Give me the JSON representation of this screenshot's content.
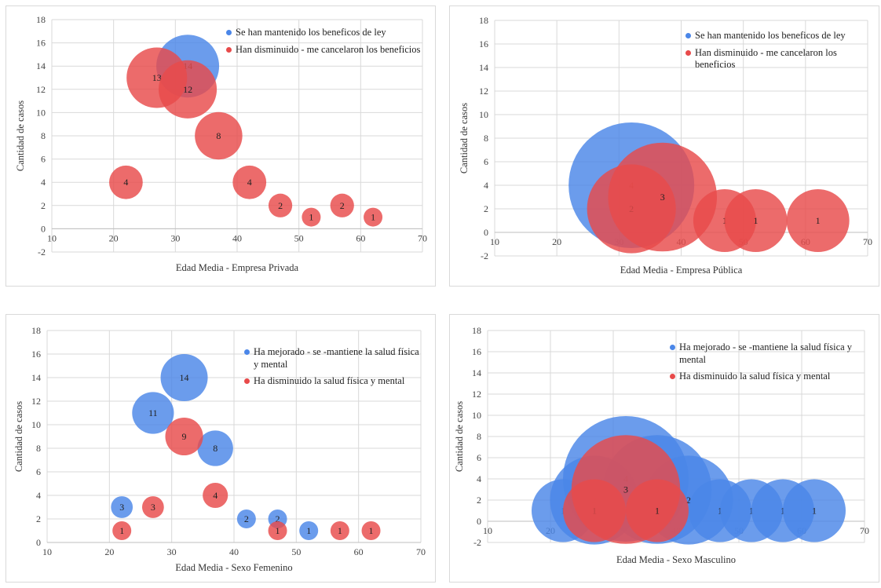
{
  "chart_data": [
    {
      "type": "scatter",
      "subtype": "bubble",
      "title": "",
      "xlabel": "Edad Media - Empresa Privada",
      "ylabel": "Cantidad de casos",
      "xlim": [
        10,
        70
      ],
      "ylim": [
        -2,
        18
      ],
      "xticks": [
        10,
        20,
        30,
        40,
        50,
        60,
        70
      ],
      "yticks": [
        -2,
        0,
        2,
        4,
        6,
        8,
        10,
        12,
        14,
        16,
        18
      ],
      "grid": true,
      "legend_position": "top-right",
      "series": [
        {
          "name": "Se han mantenido los beneficos de ley",
          "color": "#4a86e8",
          "points": [
            {
              "x": 32,
              "y": 14,
              "size": 14
            }
          ]
        },
        {
          "name": "Han disminuido - me cancelaron los beneficios",
          "color": "#e84a4a",
          "points": [
            {
              "x": 27,
              "y": 13,
              "size": 13
            },
            {
              "x": 32,
              "y": 12,
              "size": 12
            },
            {
              "x": 37,
              "y": 8,
              "size": 8
            },
            {
              "x": 22,
              "y": 4,
              "size": 4
            },
            {
              "x": 42,
              "y": 4,
              "size": 4
            },
            {
              "x": 47,
              "y": 2,
              "size": 2
            },
            {
              "x": 52,
              "y": 1,
              "size": 1
            },
            {
              "x": 57,
              "y": 2,
              "size": 2
            },
            {
              "x": 62,
              "y": 1,
              "size": 1
            }
          ]
        }
      ]
    },
    {
      "type": "scatter",
      "subtype": "bubble",
      "title": "",
      "xlabel": "Edad Media - Empresa Pública",
      "ylabel": "Cantidad de casos",
      "xlim": [
        10,
        70
      ],
      "ylim": [
        -2,
        18
      ],
      "xticks": [
        10,
        20,
        30,
        40,
        50,
        60,
        70
      ],
      "yticks": [
        -2,
        0,
        2,
        4,
        6,
        8,
        10,
        12,
        14,
        16,
        18
      ],
      "grid": true,
      "legend_position": "top-right",
      "series": [
        {
          "name": "Se han mantenido los beneficos de ley",
          "color": "#4a86e8",
          "points": [
            {
              "x": 32,
              "y": 4,
              "size": 4
            }
          ]
        },
        {
          "name": "Han disminuido - me cancelaron los beneficios",
          "color": "#e84a4a",
          "points": [
            {
              "x": 32,
              "y": 2,
              "size": 2
            },
            {
              "x": 37,
              "y": 3,
              "size": 3
            },
            {
              "x": 47,
              "y": 1,
              "size": 1
            },
            {
              "x": 52,
              "y": 1,
              "size": 1
            },
            {
              "x": 62,
              "y": 1,
              "size": 1
            }
          ]
        }
      ]
    },
    {
      "type": "scatter",
      "subtype": "bubble",
      "title": "",
      "xlabel": "Edad Media - Sexo Femenino",
      "ylabel": "Cantidad de casos",
      "xlim": [
        10,
        70
      ],
      "ylim": [
        0,
        18
      ],
      "xticks": [
        10,
        20,
        30,
        40,
        50,
        60,
        70
      ],
      "yticks": [
        0,
        2,
        4,
        6,
        8,
        10,
        12,
        14,
        16,
        18
      ],
      "grid": true,
      "legend_position": "top-right",
      "series": [
        {
          "name": "Ha mejorado - se -mantiene la salud física y mental",
          "color": "#4a86e8",
          "points": [
            {
              "x": 32,
              "y": 14,
              "size": 14
            },
            {
              "x": 27,
              "y": 11,
              "size": 11
            },
            {
              "x": 37,
              "y": 8,
              "size": 8
            },
            {
              "x": 22,
              "y": 3,
              "size": 3
            },
            {
              "x": 42,
              "y": 2,
              "size": 2
            },
            {
              "x": 47,
              "y": 2,
              "size": 2
            },
            {
              "x": 52,
              "y": 1,
              "size": 1
            }
          ]
        },
        {
          "name": "Ha disminuido la salud física y mental",
          "color": "#e84a4a",
          "points": [
            {
              "x": 32,
              "y": 9,
              "size": 9
            },
            {
              "x": 37,
              "y": 4,
              "size": 4
            },
            {
              "x": 27,
              "y": 3,
              "size": 3
            },
            {
              "x": 22,
              "y": 1,
              "size": 1
            },
            {
              "x": 47,
              "y": 1,
              "size": 1
            },
            {
              "x": 57,
              "y": 1,
              "size": 1
            },
            {
              "x": 62,
              "y": 1,
              "size": 1
            }
          ]
        }
      ]
    },
    {
      "type": "scatter",
      "subtype": "bubble",
      "title": "",
      "xlabel": "Edad Media - Sexo Masculino",
      "ylabel": "Cantidad de casos",
      "xlim": [
        10,
        70
      ],
      "ylim": [
        -2,
        18
      ],
      "xticks": [
        10,
        20,
        30,
        40,
        50,
        60,
        70
      ],
      "yticks": [
        -2,
        0,
        2,
        4,
        6,
        8,
        10,
        12,
        14,
        16,
        18
      ],
      "grid": true,
      "legend_position": "top-right",
      "series": [
        {
          "name": "Ha mejorado - se -mantiene la salud física y mental",
          "color": "#4a86e8",
          "points": [
            {
              "x": 22,
              "y": 1,
              "size": 1
            },
            {
              "x": 27,
              "y": 2,
              "size": 2
            },
            {
              "x": 32,
              "y": 4,
              "size": 4
            },
            {
              "x": 37,
              "y": 3,
              "size": 3
            },
            {
              "x": 42,
              "y": 2,
              "size": 2
            },
            {
              "x": 47,
              "y": 1,
              "size": 1
            },
            {
              "x": 52,
              "y": 1,
              "size": 1
            },
            {
              "x": 57,
              "y": 1,
              "size": 1
            },
            {
              "x": 62,
              "y": 1,
              "size": 1
            }
          ]
        },
        {
          "name": "Ha disminuido la salud física y mental",
          "color": "#e84a4a",
          "points": [
            {
              "x": 27,
              "y": 1,
              "size": 1
            },
            {
              "x": 32,
              "y": 3,
              "size": 3
            },
            {
              "x": 37,
              "y": 1,
              "size": 1
            }
          ]
        }
      ]
    }
  ]
}
